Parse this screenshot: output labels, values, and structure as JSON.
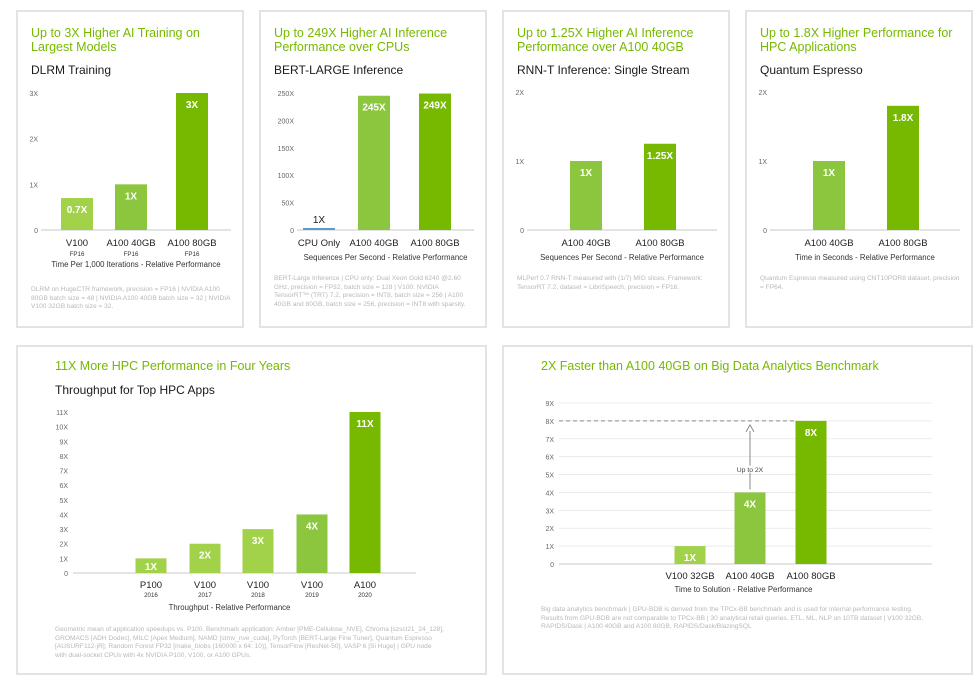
{
  "colors": {
    "accent": "#76b900",
    "bar_light": "#a2d24a",
    "bar_mid": "#8cc63f",
    "bar_dark": "#76b900",
    "bar_cpu": "#5b9bd5",
    "footnote": "#b8b8b8"
  },
  "chart_data": [
    {
      "type": "bar",
      "headline": "Up to 3X Higher AI Training on Largest Models",
      "title": "DLRM Training",
      "categories": [
        "V100",
        "A100 40GB",
        "A100 80GB"
      ],
      "category_sublabels": [
        "FP16",
        "FP16",
        "FP16"
      ],
      "values": [
        0.7,
        1,
        3
      ],
      "value_labels": [
        "0.7X",
        "1X",
        "3X"
      ],
      "yticks": [
        "0",
        "1X",
        "2X",
        "3X"
      ],
      "ylim": [
        0,
        3
      ],
      "xlabel": "Time Per 1,000 Iterations - Relative Performance",
      "footnote": "DLRM on HugeCTR framework, precision = FP16 | NVIDIA A100 80GB batch size = 48 | NVIDIA A100 40GB batch size = 32 | NVIDIA V100 32GB batch size = 32."
    },
    {
      "type": "bar",
      "headline": "Up to 249X Higher AI Inference Performance over CPUs",
      "title": "BERT-LARGE Inference",
      "categories": [
        "CPU Only",
        "A100 40GB",
        "A100 80GB"
      ],
      "values": [
        1,
        245,
        249
      ],
      "value_labels": [
        "1X",
        "245X",
        "249X"
      ],
      "yticks": [
        "0",
        "50X",
        "100X",
        "150X",
        "200X",
        "250X"
      ],
      "ylim": [
        0,
        250
      ],
      "xlabel": "Sequences Per Second - Relative Performance",
      "footnote": "BERT-Large Inference | CPU only: Dual Xeon Gold 6240 @2.60 GHz, precision = FP32, batch size = 128 | V100: NVIDIA TensorRT™ (TRT) 7.2, precision = INT8, batch size = 256 | A100 40GB and 80GB, batch size = 256, precision = INT8 with sparsity."
    },
    {
      "type": "bar",
      "headline": "Up to 1.25X Higher AI Inference Performance over A100 40GB",
      "title": "RNN-T Inference: Single Stream",
      "categories": [
        "A100 40GB",
        "A100 80GB"
      ],
      "values": [
        1,
        1.25
      ],
      "value_labels": [
        "1X",
        "1.25X"
      ],
      "yticks": [
        "0",
        "1X",
        "2X"
      ],
      "ylim": [
        0,
        2
      ],
      "xlabel": "Sequences Per Second - Relative Performance",
      "footnote": "MLPerf 0.7 RNN-T measured with (1/7) MIG slices. Framework: TensorRT 7.2, dataset = LibriSpeech, precision = FP16."
    },
    {
      "type": "bar",
      "headline": "Up to 1.8X Higher Performance for HPC Applications",
      "title": "Quantum Espresso",
      "categories": [
        "A100 40GB",
        "A100 80GB"
      ],
      "values": [
        1,
        1.8
      ],
      "value_labels": [
        "1X",
        "1.8X"
      ],
      "yticks": [
        "0",
        "1X",
        "2X"
      ],
      "ylim": [
        0,
        2
      ],
      "xlabel": "Time in Seconds - Relative Performance",
      "footnote": "Quantum Espresso measured using CNT10POR8 dataset, precision = FP64."
    },
    {
      "type": "bar",
      "headline": "11X More HPC Performance in Four Years",
      "title": "Throughput for Top HPC Apps",
      "categories": [
        "P100",
        "V100",
        "V100",
        "V100",
        "A100"
      ],
      "category_sublabels": [
        "2016",
        "2017",
        "2018",
        "2019",
        "2020"
      ],
      "values": [
        1,
        2,
        3,
        4,
        11
      ],
      "value_labels": [
        "1X",
        "2X",
        "3X",
        "4X",
        "11X"
      ],
      "yticks": [
        "0",
        "1X",
        "2X",
        "3X",
        "4X",
        "5X",
        "6X",
        "7X",
        "8X",
        "9X",
        "10X",
        "11X"
      ],
      "ylim": [
        0,
        11
      ],
      "xlabel": "Throughput - Relative Performance",
      "footnote": "Geometric mean of application speedups vs. P100. Benchmark application: Amber [PME-Cellulose_NVE], Chroma [szscl21_24_128], GROMACS [ADH Dodec], MILC [Apex Medium], NAMD [stmv_nve_cuda], PyTorch [BERT-Large Fine Tuner], Quantum Espresso [AUSURF112-jR]; Random Forest FP32 [make_blobs (160000 x 64: 10)], TensorFlow [ResNet-50], VASP 6 [Si Huge] | GPU node with dual-socket CPUs with 4x NVIDIA P100, V100, or A100 GPUs."
    },
    {
      "type": "bar",
      "headline": "2X Faster than A100 40GB on Big Data Analytics Benchmark",
      "title": "",
      "categories": [
        "V100 32GB",
        "A100 40GB",
        "A100 80GB"
      ],
      "values": [
        1,
        4,
        8
      ],
      "value_labels": [
        "1X",
        "4X",
        "8X"
      ],
      "yticks": [
        "0",
        "1X",
        "2X",
        "3X",
        "4X",
        "5X",
        "6X",
        "7X",
        "8X",
        "9X"
      ],
      "ylim": [
        0,
        9
      ],
      "xlabel": "Time to Solution - Relative Performance",
      "annotation": "Up to 2X",
      "footnote": "Big data analytics benchmark | GPU-BDB is derived from the TPCx-BB benchmark and is used for internal performance testing. Results from GPU-BDB are not comparable to TPCx-BB | 30 analytical retail queries, ETL, ML, NLP on 10TB dataset | V100 32GB, RAPIDS/Dask | A100 40GB and A100 80GB, RAPIDS/Dask/BlazingSQL"
    }
  ]
}
